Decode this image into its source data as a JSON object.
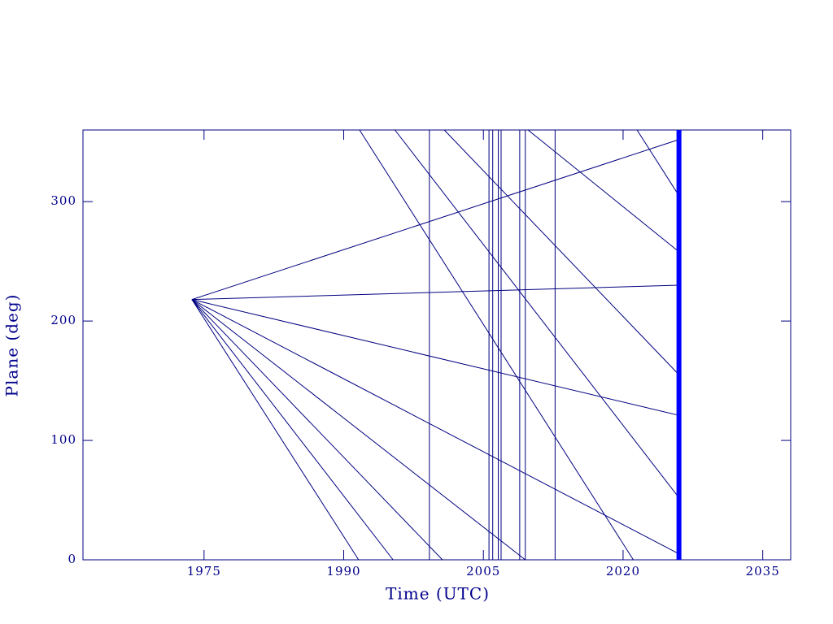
{
  "chart_data": {
    "type": "line",
    "xlabel": "Time (UTC)",
    "ylabel": "Plane (deg)",
    "xlim": [
      1962,
      2038
    ],
    "ylim": [
      0,
      360
    ],
    "xticks": [
      1975,
      1990,
      2005,
      2020,
      2035
    ],
    "yticks": [
      0,
      100,
      200,
      300
    ],
    "color": "#000080",
    "axis_color": "#000080",
    "text_color": "#00008b",
    "series": [
      {
        "x": [
          1973.7,
          2026
        ],
        "values": [
          218,
          352
        ]
      },
      {
        "x": [
          1973.7,
          2026
        ],
        "values": [
          218,
          230
        ]
      },
      {
        "x": [
          1973.7,
          2026
        ],
        "values": [
          218,
          121
        ]
      },
      {
        "x": [
          1973.7,
          2026
        ],
        "values": [
          218,
          5
        ]
      },
      {
        "x": [
          1973.7,
          1991.6
        ],
        "values": [
          218,
          0
        ]
      },
      {
        "x": [
          1973.7,
          1995.3
        ],
        "values": [
          218,
          0
        ]
      },
      {
        "x": [
          1973.7,
          2000.6
        ],
        "values": [
          218,
          0
        ]
      },
      {
        "x": [
          1973.7,
          2009.5
        ],
        "values": [
          218,
          0
        ]
      },
      {
        "x": [
          1991.7,
          2021.1
        ],
        "values": [
          360,
          0
        ]
      },
      {
        "x": [
          1995.5,
          2026
        ],
        "values": [
          360,
          52
        ]
      },
      {
        "x": [
          2000.8,
          2026
        ],
        "values": [
          360,
          155
        ]
      },
      {
        "x": [
          2009.8,
          2026
        ],
        "values": [
          360,
          258
        ]
      },
      {
        "x": [
          2021.5,
          2026
        ],
        "values": [
          360,
          305
        ]
      }
    ],
    "vlines": [
      1999.2,
      2005.6,
      2006.0,
      2006.6,
      2006.9,
      2008.9,
      2009.5,
      2012.7
    ],
    "highlight_x": 2026,
    "highlight_color": "#0000ff"
  }
}
